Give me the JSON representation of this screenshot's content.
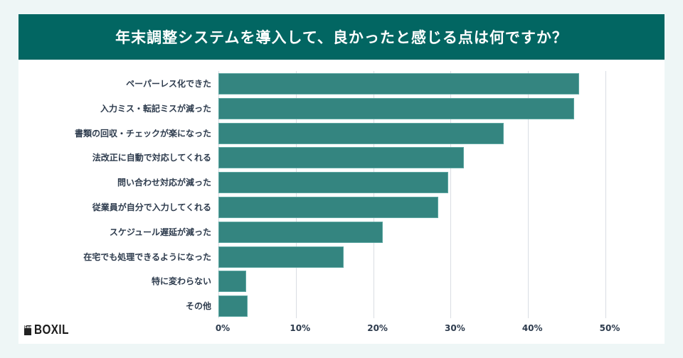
{
  "header": {
    "title": "年末調整システムを導入して、良かったと感じる点は何ですか？"
  },
  "logo": {
    "mark": "SaaS",
    "text": "BOXIL"
  },
  "colors": {
    "header_bg": "#026662",
    "bar": "#348580",
    "background": "#eef6f6",
    "grid": "#d9dde3",
    "text": "#2d3b4d"
  },
  "chart_data": {
    "type": "bar",
    "orientation": "horizontal",
    "title": "年末調整システムを導入して、良かったと感じる点は何ですか？",
    "xlabel": "",
    "ylabel": "",
    "xlim": [
      0,
      55
    ],
    "grid": true,
    "x_ticks": [
      "0%",
      "10%",
      "20%",
      "30%",
      "40%",
      "50%"
    ],
    "categories": [
      "ペーパーレス化できた",
      "入力ミス・転記ミスが減った",
      "書類の回収・チェックが楽になった",
      "法改正に自動で対応してくれる",
      "問い合わせ対応が減った",
      "従業員が自分で入力してくれる",
      "スケジュール遅延が減った",
      "在宅でも処理できるようになった",
      "特に変わらない",
      "その他"
    ],
    "values": [
      46.6,
      46.0,
      36.9,
      31.7,
      29.7,
      28.4,
      21.2,
      16.2,
      3.6,
      3.8
    ],
    "unit": "%"
  }
}
